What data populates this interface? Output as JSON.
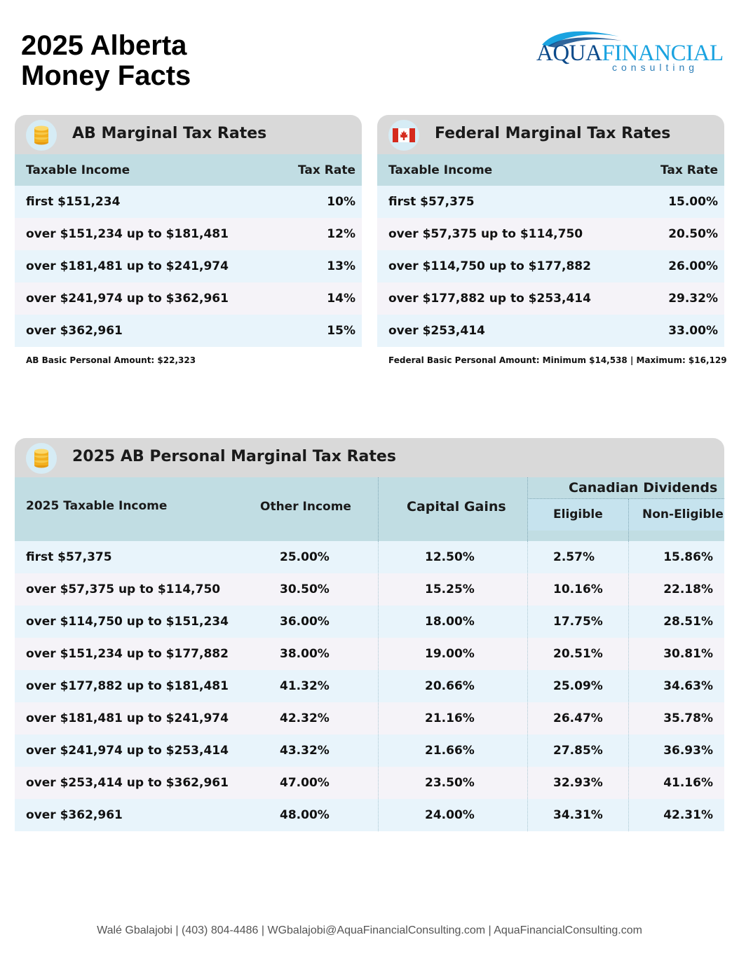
{
  "page": {
    "title_line1": "2025 Alberta",
    "title_line2": "Money Facts"
  },
  "logo": {
    "word_part1": "AQUA",
    "word_part2": "FINANCIAL",
    "subtitle": "consulting"
  },
  "ab_table": {
    "title": "AB Marginal Tax Rates",
    "icon": "coin-stack-icon",
    "col_income": "Taxable Income",
    "col_rate": "Tax Rate",
    "rows": [
      {
        "income": "first $151,234",
        "rate": "10%"
      },
      {
        "income": "over $151,234 up to $181,481",
        "rate": "12%"
      },
      {
        "income": "over $181,481 up to $241,974",
        "rate": "13%"
      },
      {
        "income": "over $241,974 up to $362,961",
        "rate": "14%"
      },
      {
        "income": "over $362,961",
        "rate": "15%"
      }
    ],
    "note": "AB Basic Personal Amount:  $22,323"
  },
  "fed_table": {
    "title": "Federal Marginal Tax Rates",
    "icon": "canada-flag-icon",
    "col_income": "Taxable Income",
    "col_rate": "Tax Rate",
    "rows": [
      {
        "income": "first $57,375",
        "rate": "15.00%"
      },
      {
        "income": "over $57,375 up to $114,750",
        "rate": "20.50%"
      },
      {
        "income": "over $114,750 up to $177,882",
        "rate": "26.00%"
      },
      {
        "income": "over $177,882 up to $253,414",
        "rate": "29.32%"
      },
      {
        "income": "over $253,414",
        "rate": "33.00%"
      }
    ],
    "note": "Federal Basic Personal Amount:  Minimum $14,538 | Maximum: $16,129"
  },
  "personal_table": {
    "title": "2025 AB Personal Marginal Tax Rates",
    "icon": "coin-stack-icon",
    "col_income": "2025 Taxable Income",
    "col_other": "Other Income",
    "col_capital": "Capital Gains",
    "col_dividends": "Canadian Dividends",
    "col_eligible": "Eligible",
    "col_non_eligible": "Non-Eligible",
    "rows": [
      {
        "income": "first $57,375",
        "other": "25.00%",
        "capital": "12.50%",
        "eligible": "2.57%",
        "non_eligible": "15.86%"
      },
      {
        "income": "over $57,375 up to $114,750",
        "other": "30.50%",
        "capital": "15.25%",
        "eligible": "10.16%",
        "non_eligible": "22.18%"
      },
      {
        "income": "over $114,750 up to $151,234",
        "other": "36.00%",
        "capital": "18.00%",
        "eligible": "17.75%",
        "non_eligible": "28.51%"
      },
      {
        "income": "over $151,234 up to $177,882",
        "other": "38.00%",
        "capital": "19.00%",
        "eligible": "20.51%",
        "non_eligible": "30.81%"
      },
      {
        "income": "over $177,882 up to $181,481",
        "other": "41.32%",
        "capital": "20.66%",
        "eligible": "25.09%",
        "non_eligible": "34.63%"
      },
      {
        "income": "over $181,481 up to $241,974",
        "other": "42.32%",
        "capital": "21.16%",
        "eligible": "26.47%",
        "non_eligible": "35.78%"
      },
      {
        "income": "over $241,974 up to $253,414",
        "other": "43.32%",
        "capital": "21.66%",
        "eligible": "27.85%",
        "non_eligible": "36.93%"
      },
      {
        "income": "over $253,414 up to $362,961",
        "other": "47.00%",
        "capital": "23.50%",
        "eligible": "32.93%",
        "non_eligible": "41.16%"
      },
      {
        "income": "over $362,961",
        "other": "48.00%",
        "capital": "24.00%",
        "eligible": "34.31%",
        "non_eligible": "42.31%"
      }
    ]
  },
  "footer": {
    "text": "Walé Gbalajobi | (403) 804-4486 | WGbalajobi@AquaFinancialConsulting.com | AquaFinancialConsulting.com"
  }
}
